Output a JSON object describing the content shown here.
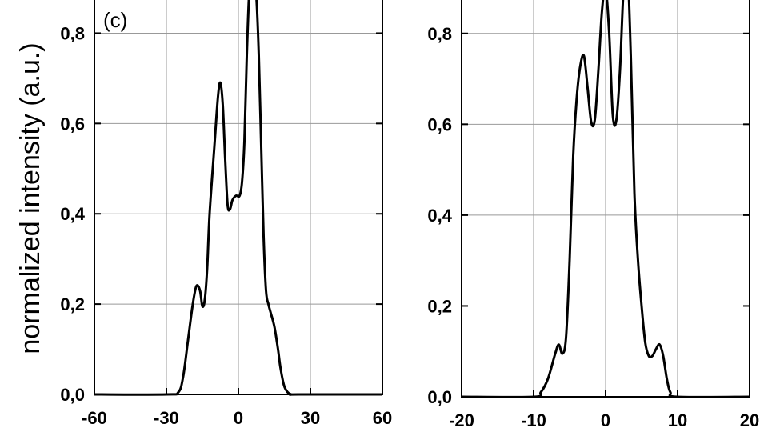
{
  "chart_data": [
    {
      "type": "line",
      "panel_label": "(c)",
      "ylabel": "normalized intensity (a.u.)",
      "xlim": [
        -60,
        60
      ],
      "ylim": [
        0,
        0.9
      ],
      "xticks": [
        -60,
        -30,
        0,
        30,
        60
      ],
      "xtick_labels": [
        "-60",
        "-30",
        "0",
        "30",
        "60"
      ],
      "yticks": [
        0.0,
        0.2,
        0.4,
        0.6,
        0.8
      ],
      "ytick_labels": [
        "0,0",
        "0,2",
        "0,4",
        "0,6",
        "0,8"
      ],
      "grid": true,
      "series": [
        {
          "x": [
            -60,
            -30,
            -25,
            -23,
            -21,
            -19,
            -17.5,
            -16,
            -15,
            -14,
            -13,
            -12,
            -10,
            -8.5,
            -7.5,
            -6.5,
            -5.5,
            -4.5,
            -3.5,
            -2.5,
            -1,
            0.5,
            1.5,
            2.5,
            3.5,
            4.5,
            5.5,
            6.5,
            7.5,
            8.5,
            9.5,
            10.5,
            11.5,
            12.5,
            13.5,
            15,
            16.5,
            17.5,
            19,
            20.5,
            22,
            25,
            60
          ],
          "y": [
            0.0,
            0.0,
            0.005,
            0.04,
            0.12,
            0.2,
            0.24,
            0.23,
            0.195,
            0.21,
            0.28,
            0.4,
            0.55,
            0.66,
            0.69,
            0.64,
            0.52,
            0.42,
            0.41,
            0.43,
            0.44,
            0.44,
            0.47,
            0.56,
            0.75,
            0.89,
            0.95,
            0.93,
            0.88,
            0.75,
            0.55,
            0.35,
            0.23,
            0.2,
            0.18,
            0.15,
            0.1,
            0.06,
            0.02,
            0.005,
            0.0,
            0.0,
            0.0
          ]
        }
      ]
    },
    {
      "type": "line",
      "panel_label": "",
      "ylabel": "",
      "xlim": [
        -20,
        20
      ],
      "ylim": [
        0,
        0.9
      ],
      "xticks": [
        -20,
        -10,
        0,
        10,
        20
      ],
      "xtick_labels": [
        "-20",
        "-10",
        "0",
        "10",
        "20"
      ],
      "yticks": [
        0.0,
        0.2,
        0.4,
        0.6,
        0.8
      ],
      "ytick_labels": [
        "0,0",
        "0,2",
        "0,4",
        "0,6",
        "0,8"
      ],
      "grid": true,
      "series": [
        {
          "x": [
            -20,
            -10,
            -9,
            -8,
            -7,
            -6.5,
            -6,
            -5.5,
            -5,
            -4.5,
            -4,
            -3.5,
            -3,
            -2.5,
            -2,
            -1.5,
            -1,
            -0.5,
            0,
            0.5,
            1,
            1.5,
            2,
            2.5,
            3,
            3.5,
            4,
            4.5,
            5,
            5.5,
            6,
            6.5,
            7,
            7.5,
            8,
            8.5,
            9,
            10,
            20
          ],
          "y": [
            0.0,
            0.0,
            0.01,
            0.04,
            0.095,
            0.115,
            0.095,
            0.13,
            0.3,
            0.53,
            0.66,
            0.73,
            0.75,
            0.68,
            0.605,
            0.61,
            0.72,
            0.85,
            0.9,
            0.8,
            0.62,
            0.61,
            0.72,
            0.9,
            0.96,
            0.75,
            0.45,
            0.3,
            0.2,
            0.12,
            0.09,
            0.09,
            0.105,
            0.115,
            0.09,
            0.04,
            0.01,
            0.0,
            0.0
          ]
        }
      ]
    }
  ]
}
